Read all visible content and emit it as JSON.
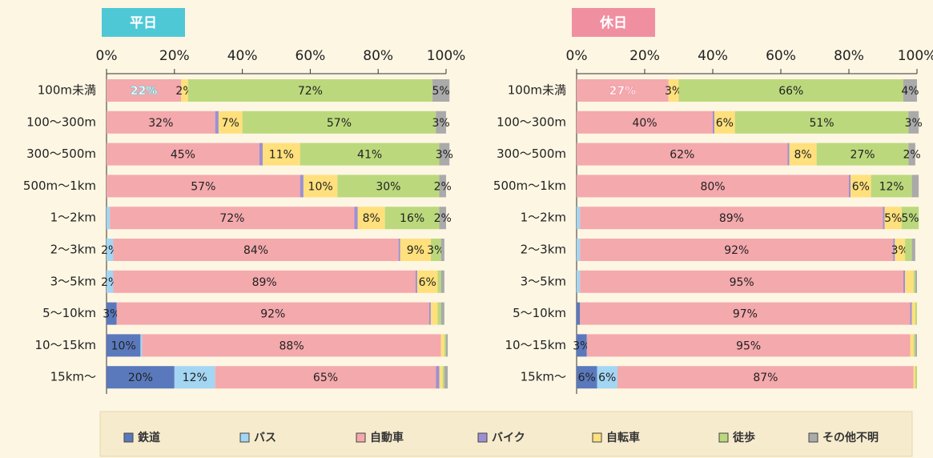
{
  "chart_data": [
    {
      "type": "bar",
      "orientation": "horizontal",
      "stacked": true,
      "title": "平日",
      "title_color": "#4fc8d6",
      "categories": [
        "100m未満",
        "100～300m",
        "300～500m",
        "500m～1km",
        "1～2km",
        "2～3km",
        "3～5km",
        "5～10km",
        "10～15km",
        "15km～"
      ],
      "xlim": [
        0,
        100
      ],
      "xticks": [
        {
          "value": 0,
          "label": "0%"
        },
        {
          "value": 20,
          "label": "20%"
        },
        {
          "value": 40,
          "label": "40%"
        },
        {
          "value": 60,
          "label": "60%"
        },
        {
          "value": 80,
          "label": "80%"
        },
        {
          "value": 100,
          "label": "100%"
        }
      ],
      "series": [
        {
          "name": "鉄道",
          "color": "#5a79bd",
          "values": [
            0,
            0,
            0,
            0,
            0,
            0,
            0,
            3,
            10,
            20
          ],
          "value_labels": [
            null,
            null,
            null,
            null,
            null,
            null,
            null,
            "3%",
            "10%",
            "20%"
          ]
        },
        {
          "name": "バス",
          "color": "#a3d6f2",
          "values": [
            0,
            0,
            0,
            0,
            1,
            2,
            2,
            0,
            0.5,
            12
          ],
          "value_labels": [
            null,
            null,
            null,
            null,
            null,
            "2%",
            "2%",
            null,
            null,
            "12%"
          ]
        },
        {
          "name": "自動車",
          "color": "#f4a9ad",
          "values": [
            22,
            32,
            45,
            57,
            72,
            84,
            89,
            92,
            88,
            65
          ],
          "value_labels": [
            "22%",
            "32%",
            "45%",
            "57%",
            "72%",
            "84%",
            "89%",
            "92%",
            "88%",
            "65%"
          ]
        },
        {
          "name": "バイク",
          "color": "#9d90d2",
          "values": [
            0,
            1,
            1,
            1,
            1,
            0.5,
            0.5,
            0.5,
            0,
            1
          ],
          "value_labels": [
            null,
            null,
            null,
            null,
            null,
            null,
            null,
            null,
            null,
            null
          ]
        },
        {
          "name": "自転車",
          "color": "#ffe07c",
          "values": [
            2,
            7,
            11,
            10,
            8,
            9,
            6,
            2,
            1,
            1
          ],
          "value_labels": [
            "2%",
            "7%",
            "11%",
            "10%",
            "8%",
            "9%",
            "6%",
            null,
            null,
            null
          ]
        },
        {
          "name": "徒歩",
          "color": "#bbd97c",
          "values": [
            72,
            57,
            41,
            30,
            16,
            3,
            1,
            1,
            0.5,
            0.5
          ],
          "value_labels": [
            "72%",
            "57%",
            "41%",
            "30%",
            "16%",
            "3%",
            null,
            null,
            null,
            null
          ]
        },
        {
          "name": "その他不明",
          "color": "#aaaaaa",
          "values": [
            5,
            3,
            3,
            2,
            2,
            1,
            1,
            1,
            0.5,
            1
          ],
          "value_labels": [
            "5%",
            "3%",
            "3%",
            "2%",
            "2%",
            null,
            null,
            null,
            null,
            null
          ]
        }
      ]
    },
    {
      "type": "bar",
      "orientation": "horizontal",
      "stacked": true,
      "title": "休日",
      "title_color": "#f08fa0",
      "categories": [
        "100m未満",
        "100～300m",
        "300～500m",
        "500m～1km",
        "1～2km",
        "2～3km",
        "3～5km",
        "5～10km",
        "10～15km",
        "15km～"
      ],
      "xlim": [
        0,
        100
      ],
      "xticks": [
        {
          "value": 0,
          "label": "0%"
        },
        {
          "value": 20,
          "label": "20%"
        },
        {
          "value": 40,
          "label": "40%"
        },
        {
          "value": 60,
          "label": "60%"
        },
        {
          "value": 80,
          "label": "80%"
        },
        {
          "value": 100,
          "label": "100%"
        }
      ],
      "series": [
        {
          "color": "#5a79bd",
          "values": [
            0,
            0,
            0,
            0,
            0,
            0,
            0,
            1,
            3,
            6
          ],
          "value_labels": [
            null,
            null,
            null,
            null,
            null,
            null,
            null,
            null,
            "3%",
            "6%"
          ]
        },
        {
          "color": "#a3d6f2",
          "values": [
            0,
            0,
            0,
            0,
            1,
            1,
            1,
            0,
            0,
            6
          ],
          "value_labels": [
            null,
            null,
            null,
            null,
            null,
            null,
            null,
            null,
            null,
            "6%"
          ]
        },
        {
          "color": "#f4a9ad",
          "values": [
            27,
            40,
            62,
            80,
            89,
            92,
            95,
            97,
            95,
            87
          ],
          "value_labels": [
            "27%",
            "40%",
            "62%",
            "80%",
            "89%",
            "92%",
            "95%",
            "97%",
            "95%",
            "87%"
          ]
        },
        {
          "color": "#9d90d2",
          "values": [
            0,
            0.5,
            0.5,
            0.5,
            0.5,
            0.5,
            0.5,
            0.5,
            0,
            0
          ],
          "value_labels": [
            null,
            null,
            null,
            null,
            null,
            null,
            null,
            null,
            null,
            null
          ]
        },
        {
          "color": "#ffe07c",
          "values": [
            3,
            6,
            8,
            6,
            5,
            3,
            2.5,
            1,
            1,
            0.5
          ],
          "value_labels": [
            "3%",
            "6%",
            "8%",
            "6%",
            "5%",
            "3%",
            null,
            null,
            null,
            null
          ]
        },
        {
          "color": "#bbd97c",
          "values": [
            66,
            51,
            27,
            12,
            5,
            2,
            0.5,
            0.5,
            0.5,
            0.5
          ],
          "value_labels": [
            "66%",
            "51%",
            "27%",
            "12%",
            "5%",
            null,
            null,
            null,
            null,
            null
          ]
        },
        {
          "color": "#aaaaaa",
          "values": [
            4,
            3,
            2,
            2,
            0,
            1,
            0.5,
            0,
            0.5,
            0
          ],
          "value_labels": [
            "4%",
            "3%",
            "2%",
            null,
            null,
            null,
            null,
            null,
            null,
            null
          ]
        }
      ]
    }
  ]
}
